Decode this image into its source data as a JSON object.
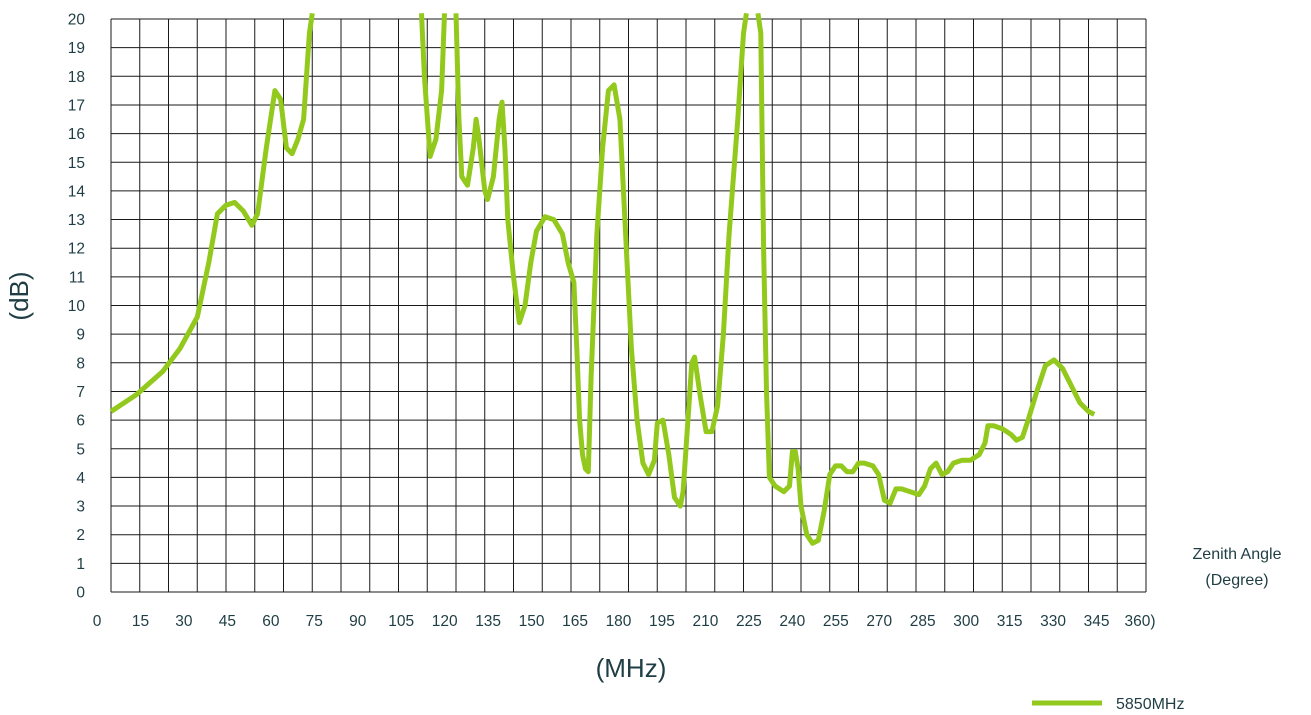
{
  "chart_data": {
    "type": "line",
    "xlabel": "(MHz)",
    "ylabel": "(dB)",
    "x_side_title": [
      "Zenith Angle",
      "(Degree)"
    ],
    "x_tick_labels": [
      "0",
      "15",
      "30",
      "45",
      "60",
      "75",
      "90",
      "105",
      "120",
      "135",
      "150",
      "165",
      "180",
      "195",
      "210",
      "225",
      "240",
      "255",
      "270",
      "285",
      "300",
      "315",
      "330",
      "345",
      "360)"
    ],
    "y_tick_labels": [
      "0",
      "1",
      "2",
      "3",
      "4",
      "5",
      "6",
      "7",
      "8",
      "9",
      "10",
      "11",
      "12",
      "13",
      "14",
      "15",
      "16",
      "17",
      "18",
      "19",
      "20"
    ],
    "xlim": [
      0,
      360
    ],
    "ylim": [
      0,
      20
    ],
    "grid": true,
    "legend_position": "bottom-right",
    "series": [
      {
        "name": "5850MHz",
        "color": "#93c91c",
        "points": [
          [
            0,
            6.3
          ],
          [
            9,
            6.9
          ],
          [
            18,
            7.7
          ],
          [
            24,
            8.5
          ],
          [
            30,
            9.6
          ],
          [
            34,
            11.5
          ],
          [
            37,
            13.2
          ],
          [
            40,
            13.5
          ],
          [
            43,
            13.6
          ],
          [
            46,
            13.3
          ],
          [
            49,
            12.8
          ],
          [
            51,
            13.2
          ],
          [
            54,
            15.5
          ],
          [
            57,
            17.5
          ],
          [
            59,
            17.2
          ],
          [
            61,
            15.5
          ],
          [
            63,
            15.3
          ],
          [
            65,
            15.8
          ],
          [
            67,
            16.5
          ],
          [
            69,
            19.5
          ],
          [
            70,
            20.2
          ],
          [
            null,
            null
          ],
          [
            108,
            20.2
          ],
          [
            109,
            18
          ],
          [
            111,
            15.2
          ],
          [
            113,
            15.8
          ],
          [
            115,
            17.5
          ],
          [
            116,
            20.2
          ],
          [
            null,
            null
          ],
          [
            120,
            20.2
          ],
          [
            121,
            16.5
          ],
          [
            122,
            14.5
          ],
          [
            124,
            14.2
          ],
          [
            126,
            15.5
          ],
          [
            127,
            16.5
          ],
          [
            128,
            15.8
          ],
          [
            130,
            14.0
          ],
          [
            131,
            13.7
          ],
          [
            133,
            14.5
          ],
          [
            135,
            16.5
          ],
          [
            136,
            17.1
          ],
          [
            137,
            15.5
          ],
          [
            138,
            13.0
          ],
          [
            140,
            11.0
          ],
          [
            142,
            9.4
          ],
          [
            144,
            10.0
          ],
          [
            146,
            11.5
          ],
          [
            148,
            12.6
          ],
          [
            151,
            13.1
          ],
          [
            154,
            13.0
          ],
          [
            157,
            12.5
          ],
          [
            159,
            11.5
          ],
          [
            161,
            10.8
          ],
          [
            162,
            8.5
          ],
          [
            163,
            6.0
          ],
          [
            164,
            4.8
          ],
          [
            165,
            4.3
          ],
          [
            166,
            4.2
          ],
          [
            167,
            7.5
          ],
          [
            169,
            12.5
          ],
          [
            171,
            15.5
          ],
          [
            173,
            17.5
          ],
          [
            175,
            17.7
          ],
          [
            177,
            16.5
          ],
          [
            179,
            12.5
          ],
          [
            181,
            8.5
          ],
          [
            183,
            6.0
          ],
          [
            185,
            4.5
          ],
          [
            187,
            4.1
          ],
          [
            189,
            4.6
          ],
          [
            190,
            5.9
          ],
          [
            192,
            6.0
          ],
          [
            194,
            4.8
          ],
          [
            196,
            3.3
          ],
          [
            198,
            3.0
          ],
          [
            199,
            3.5
          ],
          [
            201,
            6.5
          ],
          [
            202,
            8.0
          ],
          [
            203,
            8.2
          ],
          [
            205,
            6.8
          ],
          [
            207,
            5.6
          ],
          [
            209,
            5.6
          ],
          [
            211,
            6.5
          ],
          [
            213,
            9.0
          ],
          [
            215,
            12.5
          ],
          [
            218,
            16.5
          ],
          [
            220,
            19.5
          ],
          [
            221,
            20.2
          ],
          [
            null,
            null
          ],
          [
            225,
            20.2
          ],
          [
            226,
            19.5
          ],
          [
            227,
            12.0
          ],
          [
            228,
            7.0
          ],
          [
            229,
            4.0
          ],
          [
            231,
            3.7
          ],
          [
            234,
            3.5
          ],
          [
            236,
            3.7
          ],
          [
            237,
            4.9
          ],
          [
            238,
            4.9
          ],
          [
            239,
            4.3
          ],
          [
            240,
            3.0
          ],
          [
            242,
            2.0
          ],
          [
            244,
            1.7
          ],
          [
            246,
            1.8
          ],
          [
            248,
            2.8
          ],
          [
            250,
            4.1
          ],
          [
            252,
            4.4
          ],
          [
            254,
            4.4
          ],
          [
            256,
            4.2
          ],
          [
            258,
            4.2
          ],
          [
            260,
            4.5
          ],
          [
            262,
            4.5
          ],
          [
            265,
            4.4
          ],
          [
            267,
            4.1
          ],
          [
            269,
            3.2
          ],
          [
            271,
            3.1
          ],
          [
            273,
            3.6
          ],
          [
            275,
            3.6
          ],
          [
            278,
            3.5
          ],
          [
            281,
            3.4
          ],
          [
            283,
            3.7
          ],
          [
            285,
            4.3
          ],
          [
            287,
            4.5
          ],
          [
            289,
            4.1
          ],
          [
            291,
            4.2
          ],
          [
            293,
            4.5
          ],
          [
            296,
            4.6
          ],
          [
            299,
            4.6
          ],
          [
            302,
            4.8
          ],
          [
            304,
            5.2
          ],
          [
            305,
            5.8
          ],
          [
            307,
            5.8
          ],
          [
            310,
            5.7
          ],
          [
            313,
            5.5
          ],
          [
            315,
            5.3
          ],
          [
            317,
            5.4
          ],
          [
            319,
            6.0
          ],
          [
            322,
            7.0
          ],
          [
            325,
            7.9
          ],
          [
            328,
            8.1
          ],
          [
            331,
            7.8
          ],
          [
            334,
            7.2
          ],
          [
            337,
            6.6
          ],
          [
            340,
            6.3
          ],
          [
            342,
            6.2
          ]
        ]
      }
    ]
  }
}
